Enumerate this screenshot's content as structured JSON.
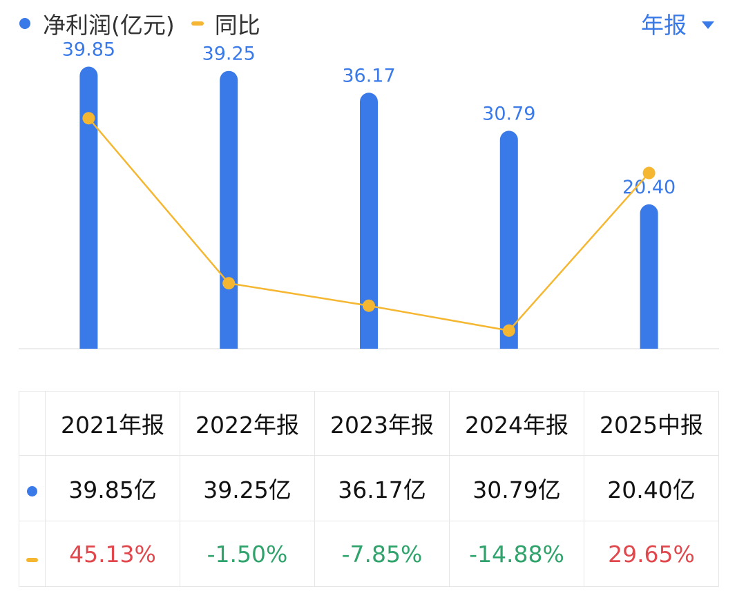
{
  "legend": {
    "profit_label": "净利润(亿元)",
    "yoy_label": "同比"
  },
  "period_selector": {
    "label": "年报"
  },
  "colors": {
    "bar": "#3a79e8",
    "bar_label": "#3a79e8",
    "line": "#f5b731",
    "positive": "#e0484e",
    "negative": "#2fa36b",
    "axis": "#e6e6e6"
  },
  "chart_data": {
    "type": "bar",
    "categories": [
      "2021年报",
      "2022年报",
      "2023年报",
      "2024年报",
      "2025中报"
    ],
    "series": [
      {
        "name": "净利润(亿元)",
        "type": "bar",
        "values": [
          39.85,
          39.25,
          36.17,
          30.79,
          20.4
        ]
      },
      {
        "name": "同比",
        "type": "line",
        "values": [
          45.13,
          -1.5,
          -7.85,
          -14.88,
          29.65
        ]
      }
    ],
    "bar_labels": [
      "39.85",
      "39.25",
      "36.17",
      "30.79",
      "20.40"
    ],
    "bar_axis_range": [
      0,
      40
    ],
    "line_axis_range": [
      -20,
      60
    ],
    "legend_position": "top-left"
  },
  "table": {
    "headers": [
      "2021年报",
      "2022年报",
      "2023年报",
      "2024年报",
      "2025中报"
    ],
    "profit_row": [
      "39.85亿",
      "39.25亿",
      "36.17亿",
      "30.79亿",
      "20.40亿"
    ],
    "yoy_row": [
      "45.13%",
      "-1.50%",
      "-7.85%",
      "-14.88%",
      "29.65%"
    ]
  }
}
